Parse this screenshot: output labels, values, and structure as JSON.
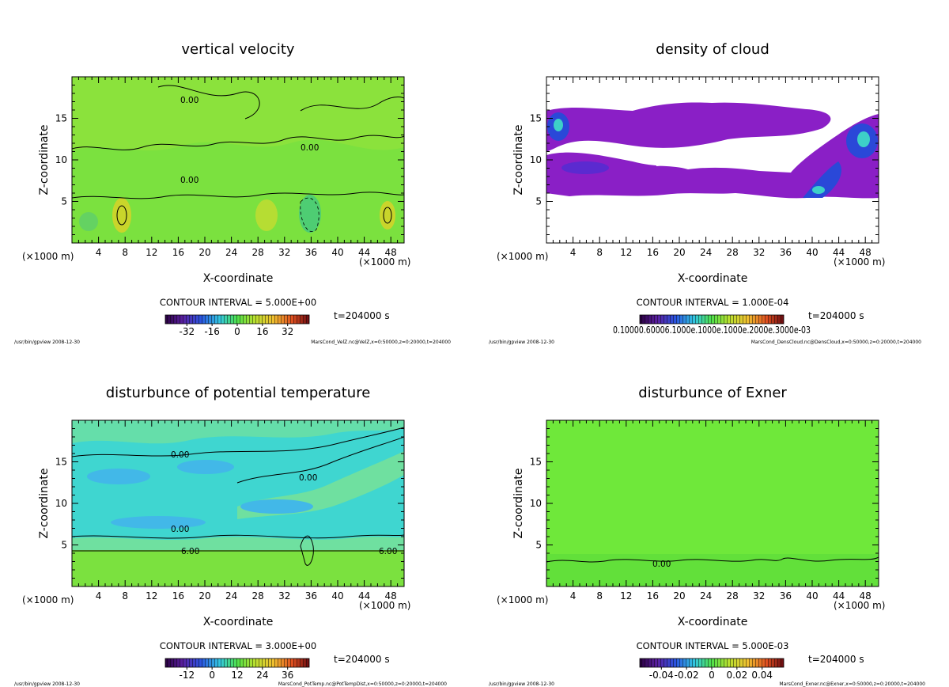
{
  "chart_data": [
    {
      "type": "heatmap",
      "id": "velz",
      "title": "vertical velocity",
      "xlabel": "X-coordinate",
      "ylabel": "Z-coordinate",
      "x_unit": "(×1000 m)",
      "xlim": [
        0,
        50
      ],
      "ylim": [
        0,
        20
      ],
      "xticks": [
        "4",
        "8",
        "12",
        "16",
        "20",
        "24",
        "28",
        "32",
        "36",
        "40",
        "44",
        "48"
      ],
      "yticks": [
        "5",
        "10",
        "15"
      ],
      "contour_interval": "CONTOUR INTERVAL = 5.000E+00",
      "time": "t=204000 s",
      "colorbar_ticks": [
        "-32",
        "-16",
        "0",
        "16",
        "32"
      ],
      "contour_labels": [
        "0.00",
        "0.00",
        "0.00"
      ],
      "footer_left": "/usr/bin/gpview  2008-12-30",
      "footer_right": "MarsCond_VelZ.nc@VelZ,x=0:50000,z=0:20000,t=204000",
      "colors": {
        "field": "#7be13f",
        "alt": "#93e23c",
        "low": "#3cc58a",
        "high": "#c9d52b"
      }
    },
    {
      "type": "heatmap",
      "id": "denscloud",
      "title": "density of cloud",
      "xlabel": "X-coordinate",
      "ylabel": "Z-coordinate",
      "x_unit": "(×1000 m)",
      "xlim": [
        0,
        50
      ],
      "ylim": [
        0,
        20
      ],
      "xticks": [
        "4",
        "8",
        "12",
        "16",
        "20",
        "24",
        "28",
        "32",
        "36",
        "40",
        "44",
        "48"
      ],
      "yticks": [
        "5",
        "10",
        "15"
      ],
      "contour_interval": "CONTOUR INTERVAL = 1.000E-04",
      "time": "t=204000 s",
      "colorbar_label_text": "0.10000.60006.1000e.1000e.1000e.2000e.3000e-03",
      "footer_left": "/usr/bin/gpview  2008-12-30",
      "footer_right": "MarsCond_DensCloud.nc@DensCloud,x=0:50000,z=0:20000,t=204000",
      "colors": {
        "field": "#8a1fc6",
        "alt": "#5b2ad0",
        "low": "#2a48d8",
        "high": "#3dd0c8"
      }
    },
    {
      "type": "heatmap",
      "id": "pottempdist",
      "title": "disturbunce of potential temperature",
      "xlabel": "X-coordinate",
      "ylabel": "Z-coordinate",
      "x_unit": "(×1000 m)",
      "xlim": [
        0,
        50
      ],
      "ylim": [
        0,
        20
      ],
      "xticks": [
        "4",
        "8",
        "12",
        "16",
        "20",
        "24",
        "28",
        "32",
        "36",
        "40",
        "44",
        "48"
      ],
      "yticks": [
        "5",
        "10",
        "15"
      ],
      "contour_interval": "CONTOUR INTERVAL = 3.000E+00",
      "time": "t=204000 s",
      "colorbar_ticks": [
        "-12",
        "0",
        "12",
        "24",
        "36"
      ],
      "contour_labels": [
        "0.00",
        "0.00",
        "0.00",
        "6.00",
        "6.00"
      ],
      "footer_left": "/usr/bin/gpview  2008-12-30",
      "footer_right": "MarsCond_PotTemp.nc@PotTempDist,x=0:50000,z=0:20000,t=204000",
      "colors": {
        "field": "#3fd6d0",
        "alt": "#6fe0a0",
        "low": "#42b8e8",
        "high": "#7be13f"
      }
    },
    {
      "type": "heatmap",
      "id": "exner",
      "title": "disturbunce of Exner",
      "xlabel": "X-coordinate",
      "ylabel": "Z-coordinate",
      "x_unit": "(×1000 m)",
      "xlim": [
        0,
        50
      ],
      "ylim": [
        0,
        20
      ],
      "xticks": [
        "4",
        "8",
        "12",
        "16",
        "20",
        "24",
        "28",
        "32",
        "36",
        "40",
        "44",
        "48"
      ],
      "yticks": [
        "5",
        "10",
        "15"
      ],
      "contour_interval": "CONTOUR INTERVAL = 5.000E-03",
      "time": "t=204000 s",
      "colorbar_ticks": [
        "-0.04",
        "-0.02",
        "0",
        "0.02",
        "0.04"
      ],
      "contour_labels": [
        "0.00"
      ],
      "footer_left": "/usr/bin/gpview  2008-12-30",
      "footer_right": "MarsCond_Exner.nc@Exner,x=0:50000,z=0:20000,t=204000",
      "colors": {
        "field": "#6fe83a",
        "alt": "#62e03a",
        "low": "#5ed83a",
        "high": "#7eea40"
      }
    }
  ]
}
